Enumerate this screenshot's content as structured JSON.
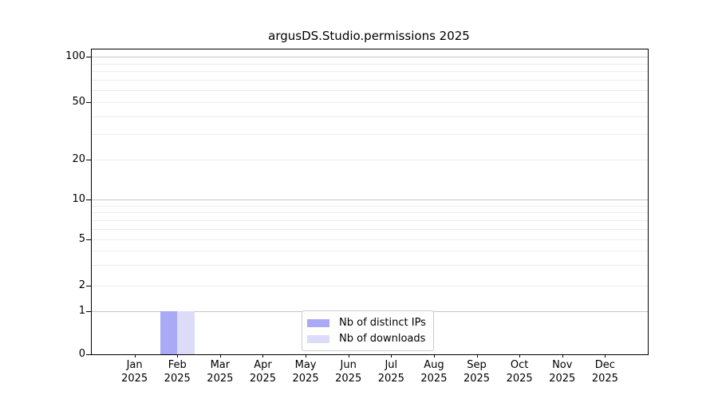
{
  "chart_data": {
    "type": "bar",
    "title": "argusDS.Studio.permissions 2025",
    "categories": [
      "Jan 2025",
      "Feb 2025",
      "Mar 2025",
      "Apr 2025",
      "May 2025",
      "Jun 2025",
      "Jul 2025",
      "Aug 2025",
      "Sep 2025",
      "Oct 2025",
      "Nov 2025",
      "Dec 2025"
    ],
    "x_ticks": [
      {
        "month": "Jan",
        "year": "2025"
      },
      {
        "month": "Feb",
        "year": "2025"
      },
      {
        "month": "Mar",
        "year": "2025"
      },
      {
        "month": "Apr",
        "year": "2025"
      },
      {
        "month": "May",
        "year": "2025"
      },
      {
        "month": "Jun",
        "year": "2025"
      },
      {
        "month": "Jul",
        "year": "2025"
      },
      {
        "month": "Aug",
        "year": "2025"
      },
      {
        "month": "Sep",
        "year": "2025"
      },
      {
        "month": "Oct",
        "year": "2025"
      },
      {
        "month": "Nov",
        "year": "2025"
      },
      {
        "month": "Dec",
        "year": "2025"
      }
    ],
    "series": [
      {
        "name": "Nb of distinct IPs",
        "color": "#a9a9f6",
        "values": [
          0,
          1,
          0,
          0,
          0,
          0,
          0,
          0,
          0,
          0,
          0,
          0
        ]
      },
      {
        "name": "Nb of downloads",
        "color": "#dcdcf9",
        "values": [
          0,
          1,
          0,
          0,
          0,
          0,
          0,
          0,
          0,
          0,
          0,
          0
        ]
      }
    ],
    "yscale": "symlog",
    "ylim": [
      0,
      100
    ],
    "y_major_ticks": [
      0,
      1,
      2,
      5,
      10,
      20,
      50,
      100
    ],
    "y_minor_ticks": [
      3,
      4,
      6,
      7,
      8,
      9,
      30,
      40,
      60,
      70,
      80,
      90
    ],
    "grid": true,
    "legend_position": "inside-bottom-center"
  },
  "colors": {
    "grid_decade": "#c6c6c6",
    "grid_light": "#ececec",
    "axis": "#000000",
    "legend_border": "#cccccc",
    "legend_bg": "#ffffff"
  }
}
